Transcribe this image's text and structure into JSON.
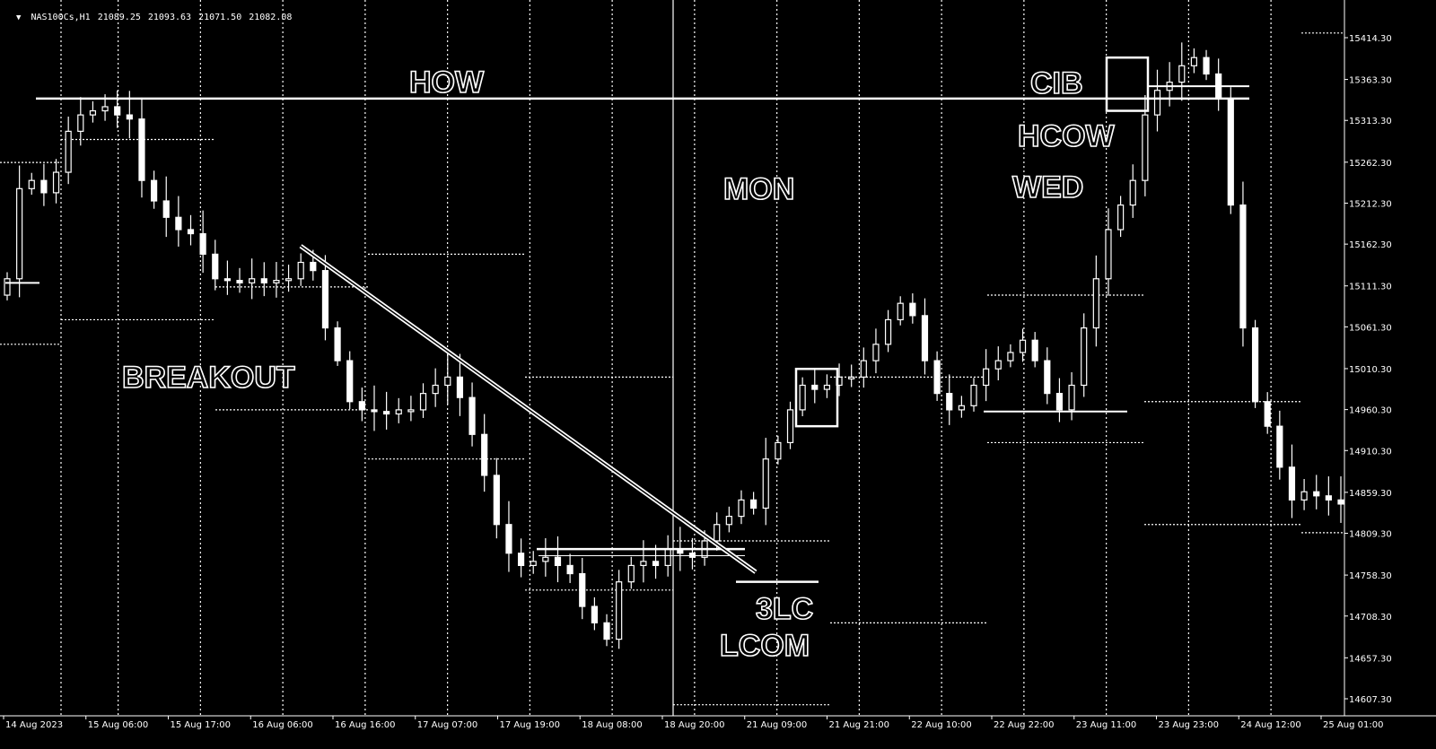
{
  "header": {
    "symbol_tf": "NAS100Cs,H1",
    "open": "21089.25",
    "high": "21093.63",
    "low": "21071.50",
    "close": "21082.08"
  },
  "colors": {
    "background": "#000000",
    "foreground": "#ffffff"
  },
  "chart_data": {
    "type": "candlestick",
    "title": "",
    "xlabel": "",
    "ylabel": "",
    "grid": false,
    "ylim": [
      14587.3,
      15450
    ],
    "y_ticks": [
      "15414.30",
      "15363.30",
      "15313.30",
      "15262.30",
      "15212.30",
      "15162.30",
      "15111.30",
      "15061.30",
      "15010.30",
      "14960.30",
      "14910.30",
      "14859.30",
      "14809.30",
      "14758.30",
      "14708.30",
      "14657.30",
      "14607.30"
    ],
    "x_ticks": [
      "14 Aug 2023",
      "15 Aug 06:00",
      "15 Aug 17:00",
      "16 Aug 06:00",
      "16 Aug 16:00",
      "17 Aug 07:00",
      "17 Aug 19:00",
      "18 Aug 08:00",
      "18 Aug 20:00",
      "21 Aug 09:00",
      "21 Aug 21:00",
      "22 Aug 10:00",
      "22 Aug 22:00",
      "23 Aug 11:00",
      "23 Aug 23:00",
      "24 Aug 12:00",
      "25 Aug 01:00"
    ],
    "period_separators_at_tick": [
      1,
      3,
      5,
      7,
      9,
      11,
      13,
      15
    ],
    "closes": [
      15120,
      15230,
      15240,
      15225,
      15250,
      15300,
      15320,
      15325,
      15330,
      15320,
      15315,
      15240,
      15215,
      15195,
      15180,
      15175,
      15150,
      15120,
      15118,
      15115,
      15120,
      15115,
      15118,
      15120,
      15140,
      15130,
      15060,
      15020,
      14970,
      14960,
      14958,
      14955,
      14960,
      14960,
      14980,
      14990,
      15000,
      14975,
      14930,
      14880,
      14820,
      14785,
      14770,
      14775,
      14780,
      14770,
      14760,
      14720,
      14700,
      14680,
      14750,
      14770,
      14775,
      14770,
      14790,
      14785,
      14780,
      14800,
      14820,
      14830,
      14850,
      14840,
      14900,
      14920,
      14960,
      14990,
      14985,
      14990,
      15000,
      15000,
      15020,
      15040,
      15070,
      15090,
      15075,
      15020,
      14980,
      14960,
      14965,
      14990,
      15010,
      15020,
      15030,
      15045,
      15020,
      14980,
      14960,
      14990,
      15060,
      15120,
      15180,
      15210,
      15240,
      15320,
      15350,
      15360,
      15380,
      15390,
      15370,
      15340,
      15210,
      15060,
      14970,
      14940,
      14890,
      14850,
      14860,
      14855,
      14850,
      14845
    ],
    "horizontal_levels": [
      {
        "label": "HOW",
        "value": 15340
      }
    ],
    "annotations": [
      "HOW",
      "BREAKOUT",
      "MON",
      "3LC",
      "LCOM",
      "CIB",
      "HCOW",
      "WED"
    ]
  },
  "labels": {
    "how": "HOW",
    "breakout": "BREAKOUT",
    "mon": "MON",
    "three_lc": "3LC",
    "lcom": "LCOM",
    "cib": "CIB",
    "hcow": "HCOW",
    "wed": "WED"
  }
}
